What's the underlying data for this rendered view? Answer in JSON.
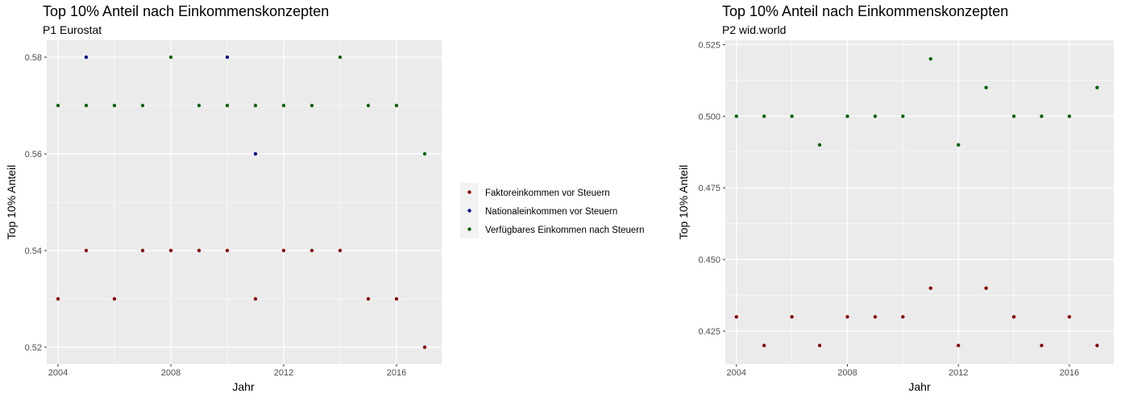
{
  "chart_data": [
    {
      "type": "scatter",
      "title": "Top 10% Anteil nach Einkommenskonzepten",
      "subtitle": "P1 Eurostat",
      "xlabel": "Jahr",
      "ylabel": "Top 10% Anteil",
      "xlim": [
        2003.6,
        2017.6
      ],
      "ylim": [
        0.5165,
        0.5835
      ],
      "x_ticks": [
        2004,
        2008,
        2012,
        2016
      ],
      "y_ticks": [
        0.52,
        0.54,
        0.56,
        0.58
      ],
      "y_tick_labels": [
        "0.52",
        "0.54",
        "0.56",
        "0.58"
      ],
      "grid": true,
      "series": [
        {
          "name": "Faktoreinkommen vor Steuern",
          "color": "#8b0000",
          "x": [
            2004,
            2005,
            2006,
            2007,
            2008,
            2009,
            2010,
            2011,
            2012,
            2013,
            2014,
            2015,
            2016,
            2017
          ],
          "y": [
            0.53,
            0.54,
            0.53,
            0.54,
            0.54,
            0.54,
            0.54,
            0.53,
            0.54,
            0.54,
            0.54,
            0.53,
            0.53,
            0.52
          ]
        },
        {
          "name": "Nationaleinkommen vor Steuern",
          "color": "#00008b",
          "x": [
            2005,
            2010,
            2011
          ],
          "y": [
            0.58,
            0.58,
            0.56
          ]
        },
        {
          "name": "Verfügbares Einkommen nach Steuern",
          "color": "#006400",
          "x": [
            2004,
            2005,
            2006,
            2007,
            2008,
            2009,
            2010,
            2011,
            2012,
            2013,
            2014,
            2015,
            2016,
            2017
          ],
          "y": [
            0.57,
            0.57,
            0.57,
            0.57,
            0.58,
            0.57,
            0.57,
            0.57,
            0.57,
            0.57,
            0.58,
            0.57,
            0.57,
            0.56
          ]
        }
      ]
    },
    {
      "type": "scatter",
      "title": "Top 10% Anteil nach Einkommenskonzepten",
      "subtitle": "P2 wid.world",
      "xlabel": "Jahr",
      "ylabel": "Top 10% Anteil",
      "xlim": [
        2003.6,
        2017.6
      ],
      "ylim": [
        0.4135,
        0.5265
      ],
      "x_ticks": [
        2004,
        2008,
        2012,
        2016
      ],
      "y_ticks": [
        0.425,
        0.45,
        0.475,
        0.5,
        0.525
      ],
      "y_tick_labels": [
        "0.425",
        "0.450",
        "0.475",
        "0.500",
        "0.525"
      ],
      "grid": true,
      "series": [
        {
          "name": "Faktoreinkommen vor Steuern",
          "color": "#8b0000",
          "x": [
            2004,
            2005,
            2006,
            2007,
            2008,
            2009,
            2010,
            2011,
            2012,
            2013,
            2014,
            2015,
            2016,
            2017
          ],
          "y": [
            0.43,
            0.42,
            0.43,
            0.42,
            0.43,
            0.43,
            0.43,
            0.44,
            0.42,
            0.44,
            0.43,
            0.42,
            0.43,
            0.42
          ]
        },
        {
          "name": "Verfügbares Einkommen nach Steuern",
          "color": "#006400",
          "x": [
            2004,
            2005,
            2006,
            2007,
            2008,
            2009,
            2010,
            2011,
            2012,
            2013,
            2014,
            2015,
            2016,
            2017
          ],
          "y": [
            0.5,
            0.5,
            0.5,
            0.49,
            0.5,
            0.5,
            0.5,
            0.52,
            0.49,
            0.51,
            0.5,
            0.5,
            0.5,
            0.51
          ]
        }
      ]
    }
  ],
  "legend": {
    "placement": "between-panels",
    "items": [
      {
        "label": "Faktoreinkommen vor Steuern",
        "color": "#8b0000"
      },
      {
        "label": "Nationaleinkommen vor Steuern",
        "color": "#00008b"
      },
      {
        "label": "Verfügbares Einkommen nach Steuern",
        "color": "#006400"
      }
    ]
  }
}
